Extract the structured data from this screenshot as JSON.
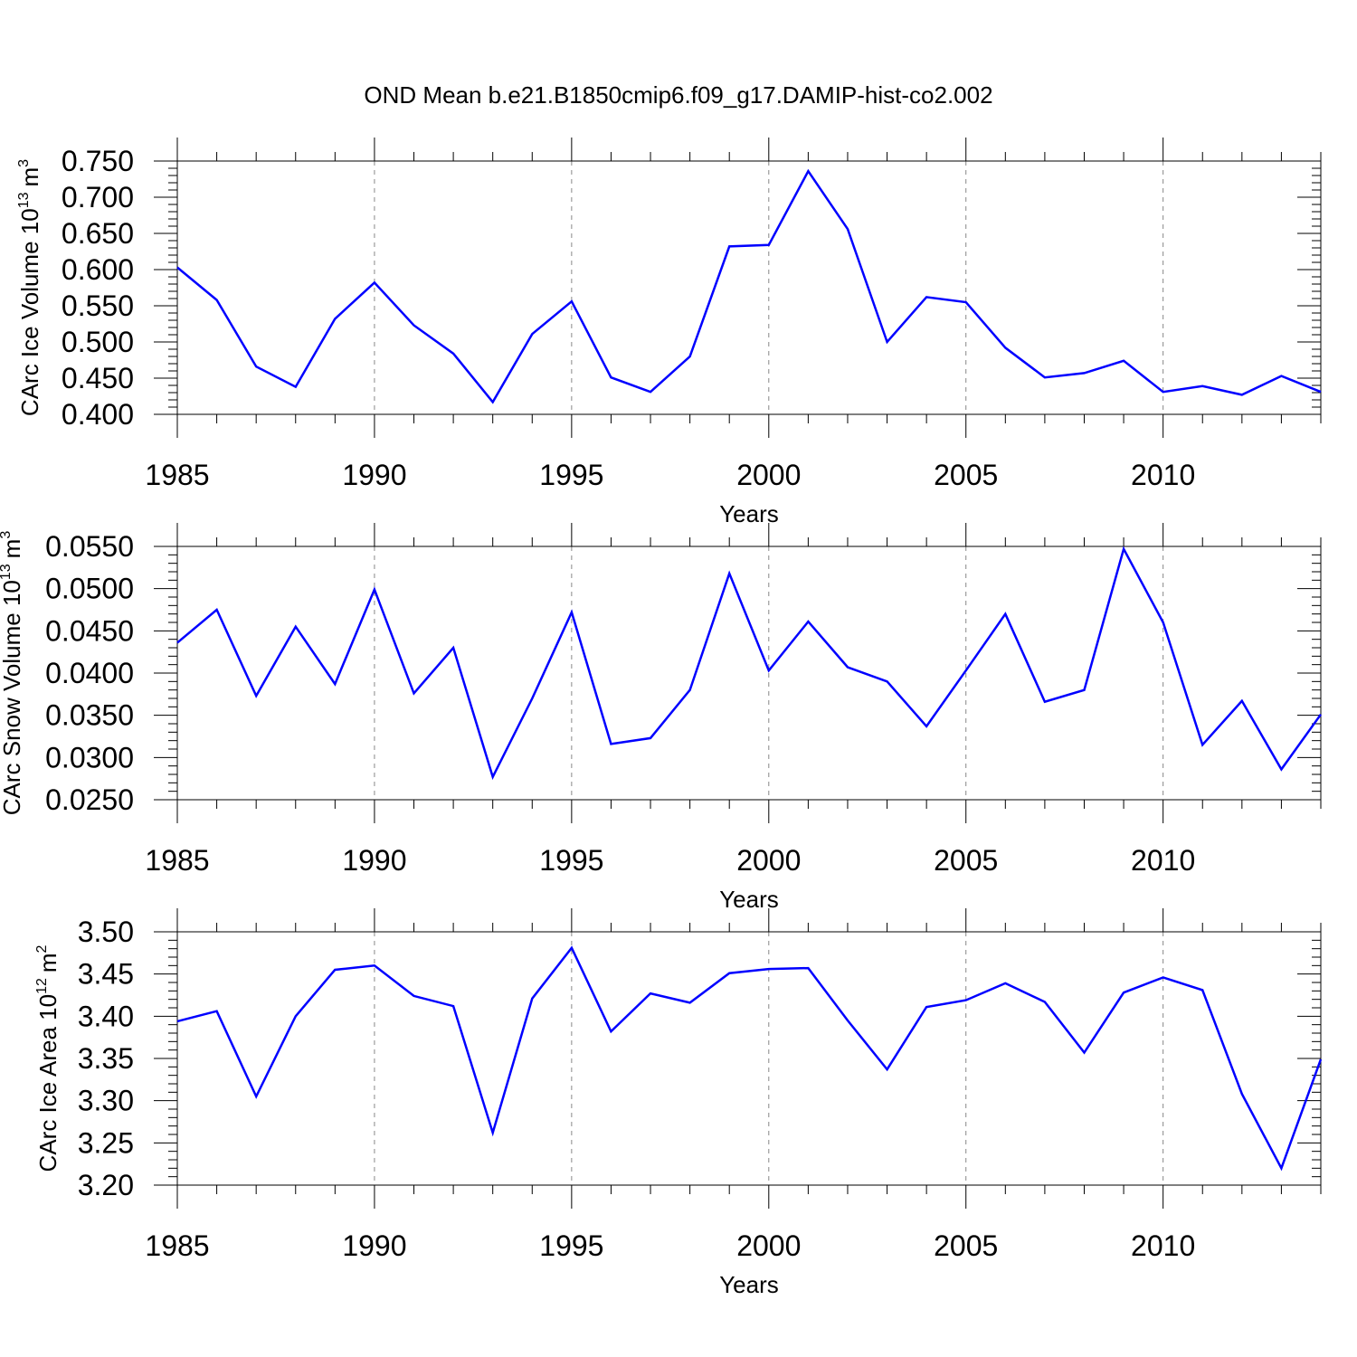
{
  "title": "OND Mean b.e21.B1850cmip6.f09_g17.DAMIP-hist-co2.002",
  "line_color": "#0000ff",
  "chart_data": [
    {
      "type": "line",
      "xlabel": "Years",
      "ylabel": "CArc Ice Volume 10",
      "ylabel_exp": "13",
      "ylabel_unit": "m",
      "ylabel_unit_exp": "3",
      "xlim": [
        1985,
        2014
      ],
      "ylim": [
        0.4,
        0.75
      ],
      "xticks": [
        1985,
        1990,
        1995,
        2000,
        2005,
        2010
      ],
      "yticks": [
        "0.400",
        "0.450",
        "0.500",
        "0.550",
        "0.600",
        "0.650",
        "0.700",
        "0.750"
      ],
      "ytick_values": [
        0.4,
        0.45,
        0.5,
        0.55,
        0.6,
        0.65,
        0.7,
        0.75
      ],
      "series": [
        {
          "name": "CArc Ice Volume",
          "x": [
            1985,
            1986,
            1987,
            1988,
            1989,
            1990,
            1991,
            1992,
            1993,
            1994,
            1995,
            1996,
            1997,
            1998,
            1999,
            2000,
            2001,
            2002,
            2003,
            2004,
            2005,
            2006,
            2007,
            2008,
            2009,
            2010,
            2011,
            2012,
            2013,
            2014
          ],
          "values": [
            0.603,
            0.558,
            0.466,
            0.438,
            0.532,
            0.582,
            0.523,
            0.484,
            0.417,
            0.511,
            0.556,
            0.451,
            0.431,
            0.48,
            0.632,
            0.634,
            0.736,
            0.656,
            0.5,
            0.562,
            0.555,
            0.492,
            0.451,
            0.457,
            0.474,
            0.431,
            0.439,
            0.427,
            0.453,
            0.431
          ]
        }
      ]
    },
    {
      "type": "line",
      "xlabel": "Years",
      "ylabel": "CArc Snow Volume 10",
      "ylabel_exp": "13",
      "ylabel_unit": "m",
      "ylabel_unit_exp": "3",
      "xlim": [
        1985,
        2014
      ],
      "ylim": [
        0.025,
        0.055
      ],
      "xticks": [
        1985,
        1990,
        1995,
        2000,
        2005,
        2010
      ],
      "yticks": [
        "0.0250",
        "0.0300",
        "0.0350",
        "0.0400",
        "0.0450",
        "0.0500",
        "0.0550"
      ],
      "ytick_values": [
        0.025,
        0.03,
        0.035,
        0.04,
        0.045,
        0.05,
        0.055
      ],
      "series": [
        {
          "name": "CArc Snow Volume",
          "x": [
            1985,
            1986,
            1987,
            1988,
            1989,
            1990,
            1991,
            1992,
            1993,
            1994,
            1995,
            1996,
            1997,
            1998,
            1999,
            2000,
            2001,
            2002,
            2003,
            2004,
            2005,
            2006,
            2007,
            2008,
            2009,
            2010,
            2011,
            2012,
            2013,
            2014
          ],
          "values": [
            0.0436,
            0.0475,
            0.0373,
            0.0455,
            0.0387,
            0.0499,
            0.0376,
            0.043,
            0.0277,
            0.037,
            0.0472,
            0.0316,
            0.0323,
            0.038,
            0.0518,
            0.0403,
            0.0461,
            0.0407,
            0.039,
            0.0337,
            0.0403,
            0.047,
            0.0366,
            0.038,
            0.0547,
            0.046,
            0.0315,
            0.0367,
            0.0286,
            0.0351
          ]
        }
      ]
    },
    {
      "type": "line",
      "xlabel": "Years",
      "ylabel": "CArc Ice Area 10",
      "ylabel_exp": "12",
      "ylabel_unit": "m",
      "ylabel_unit_exp": "2",
      "xlim": [
        1985,
        2014
      ],
      "ylim": [
        3.2,
        3.5
      ],
      "xticks": [
        1985,
        1990,
        1995,
        2000,
        2005,
        2010
      ],
      "yticks": [
        "3.20",
        "3.25",
        "3.30",
        "3.35",
        "3.40",
        "3.45",
        "3.50"
      ],
      "ytick_values": [
        3.2,
        3.25,
        3.3,
        3.35,
        3.4,
        3.45,
        3.5
      ],
      "series": [
        {
          "name": "CArc Ice Area",
          "x": [
            1985,
            1986,
            1987,
            1988,
            1989,
            1990,
            1991,
            1992,
            1993,
            1994,
            1995,
            1996,
            1997,
            1998,
            1999,
            2000,
            2001,
            2002,
            2003,
            2004,
            2005,
            2006,
            2007,
            2008,
            2009,
            2010,
            2011,
            2012,
            2013,
            2014
          ],
          "values": [
            3.394,
            3.406,
            3.305,
            3.4,
            3.455,
            3.46,
            3.424,
            3.412,
            3.262,
            3.421,
            3.481,
            3.382,
            3.427,
            3.416,
            3.451,
            3.456,
            3.457,
            3.395,
            3.337,
            3.411,
            3.419,
            3.439,
            3.417,
            3.357,
            3.428,
            3.446,
            3.431,
            3.308,
            3.22,
            3.349
          ]
        }
      ]
    }
  ]
}
